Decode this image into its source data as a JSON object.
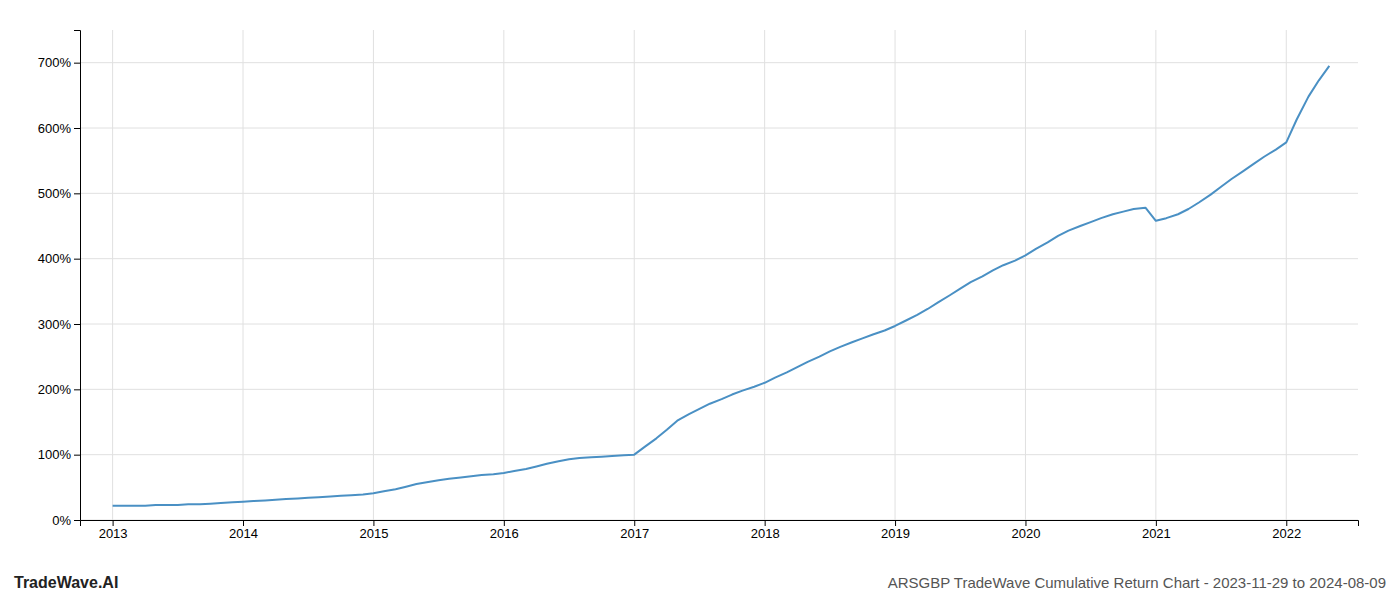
{
  "chart_data": {
    "type": "line",
    "title": "ARSGBP TradeWave Cumulative Return Chart - 2023-11-29 to 2024-08-09",
    "annotations": [
      "TradeWave.AI"
    ],
    "color": "#4a90c4",
    "grid": true,
    "xlim": [
      2012.75,
      2022.55
    ],
    "ylim": [
      0,
      750
    ],
    "xticks": [
      2013,
      2014,
      2015,
      2016,
      2017,
      2018,
      2019,
      2020,
      2021,
      2022
    ],
    "yticks": [
      {
        "value": 0,
        "label": "0%"
      },
      {
        "value": 100,
        "label": "100%"
      },
      {
        "value": 200,
        "label": "200%"
      },
      {
        "value": 300,
        "label": "300%"
      },
      {
        "value": 400,
        "label": "400%"
      },
      {
        "value": 500,
        "label": "500%"
      },
      {
        "value": 600,
        "label": "600%"
      },
      {
        "value": 700,
        "label": "700%"
      }
    ],
    "x": [
      2013.0,
      2013.08,
      2013.17,
      2013.25,
      2013.33,
      2013.42,
      2013.5,
      2013.58,
      2013.67,
      2013.75,
      2013.83,
      2013.92,
      2014.0,
      2014.08,
      2014.17,
      2014.25,
      2014.33,
      2014.42,
      2014.5,
      2014.58,
      2014.67,
      2014.75,
      2014.83,
      2014.92,
      2015.0,
      2015.08,
      2015.17,
      2015.25,
      2015.33,
      2015.42,
      2015.5,
      2015.58,
      2015.67,
      2015.75,
      2015.83,
      2015.92,
      2016.0,
      2016.08,
      2016.17,
      2016.25,
      2016.33,
      2016.42,
      2016.5,
      2016.58,
      2016.67,
      2016.75,
      2016.83,
      2016.92,
      2017.0,
      2017.08,
      2017.17,
      2017.25,
      2017.33,
      2017.42,
      2017.5,
      2017.58,
      2017.67,
      2017.75,
      2017.83,
      2017.92,
      2018.0,
      2018.08,
      2018.17,
      2018.25,
      2018.33,
      2018.42,
      2018.5,
      2018.58,
      2018.67,
      2018.75,
      2018.83,
      2018.92,
      2019.0,
      2019.08,
      2019.17,
      2019.25,
      2019.33,
      2019.42,
      2019.5,
      2019.58,
      2019.67,
      2019.75,
      2019.83,
      2019.92,
      2020.0,
      2020.08,
      2020.17,
      2020.25,
      2020.33,
      2020.42,
      2020.5,
      2020.58,
      2020.67,
      2020.75,
      2020.83,
      2020.92,
      2021.0,
      2021.08,
      2021.17,
      2021.25,
      2021.33,
      2021.42,
      2021.5,
      2021.58,
      2021.67,
      2021.75,
      2021.83,
      2021.92,
      2022.0,
      2022.08,
      2022.17,
      2022.25,
      2022.33
    ],
    "values": [
      22,
      22,
      22,
      22,
      23,
      23,
      23,
      24,
      24,
      25,
      26,
      27,
      28,
      29,
      30,
      31,
      32,
      33,
      34,
      35,
      36,
      37,
      38,
      39,
      41,
      44,
      47,
      51,
      55,
      58,
      61,
      63,
      65,
      67,
      69,
      70,
      72,
      75,
      78,
      82,
      86,
      90,
      93,
      95,
      96,
      97,
      98,
      99,
      100,
      112,
      125,
      138,
      152,
      162,
      170,
      178,
      185,
      192,
      198,
      204,
      210,
      218,
      226,
      234,
      242,
      250,
      258,
      265,
      272,
      278,
      284,
      290,
      297,
      305,
      314,
      323,
      333,
      344,
      354,
      364,
      373,
      382,
      390,
      397,
      405,
      415,
      425,
      435,
      443,
      450,
      456,
      462,
      468,
      472,
      476,
      478,
      458,
      462,
      468,
      476,
      486,
      498,
      510,
      522,
      534,
      545,
      556,
      567,
      578,
      613,
      648,
      673,
      695
    ]
  }
}
